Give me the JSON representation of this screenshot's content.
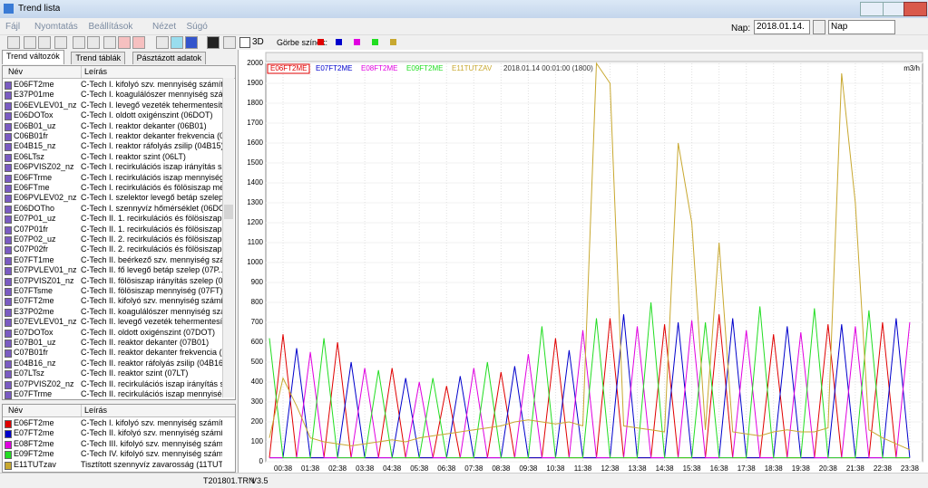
{
  "window": {
    "title": "Trend lista"
  },
  "menu": [
    "Fájl",
    "Nyomtatás",
    "Beállítások",
    "Nézet",
    "Súgó"
  ],
  "toolbar": {
    "curve_colors_label": "Görbe színek:",
    "label_3d": "3D",
    "day_label": "Nap:",
    "date": "2018.01.14.",
    "period": "Nap"
  },
  "tabs": [
    "Trend változók",
    "Trend táblák",
    "Pásztázott adatok"
  ],
  "variables": {
    "columns": [
      "Név",
      "Leírás"
    ],
    "rows": [
      [
        "E06FT2me",
        "C-Tech I. kifolyó szv. mennyiség számít..."
      ],
      [
        "E37P01me",
        "C-Tech I. koagulálószer mennyiség szá..."
      ],
      [
        "E06EVLEV01_nz",
        "C-Tech I. levegő vezeték tehermentesít..."
      ],
      [
        "E06DOTox",
        "C-Tech I. oldott oxigénszint (06DOT)"
      ],
      [
        "E06B01_uz",
        "C-Tech I. reaktor dekanter (06B01)"
      ],
      [
        "C06B01fr",
        "C-Tech I. reaktor dekanter frekvencia (0..."
      ],
      [
        "E04B15_nz",
        "C-Tech I. reaktor ráfolyás zsilip (04B15)"
      ],
      [
        "E06LTsz",
        "C-Tech I. reaktor szint (06LT)"
      ],
      [
        "E06PVISZ02_nz",
        "C-Tech I. recirkulációs iszap irányítás sz..."
      ],
      [
        "E06FTrme",
        "C-Tech I. recirkulációs iszap mennyiség..."
      ],
      [
        "E06FTme",
        "C-Tech I. recirkulációs és fölösiszap me..."
      ],
      [
        "E06PVLEV02_nz",
        "C-Tech I. szelektor levegő betáp szelep..."
      ],
      [
        "E06DOTho",
        "C-Tech I. szennyvíz hőmérséklet (06DO..."
      ],
      [
        "E07P01_uz",
        "C-Tech II. 1. recirkulációs és fölösiszap ..."
      ],
      [
        "C07P01fr",
        "C-Tech II. 1. recirkulációs és fölösiszap ..."
      ],
      [
        "E07P02_uz",
        "C-Tech II. 2. recirkulációs és fölösiszap ..."
      ],
      [
        "C07P02fr",
        "C-Tech II. 2. recirkulációs és fölösiszap ..."
      ],
      [
        "E07FT1me",
        "C-Tech II. beérkező szv. mennyiség szá..."
      ],
      [
        "E07PVLEV01_nz",
        "C-Tech II. fő levegő betáp szelep (07P..."
      ],
      [
        "E07PVISZ01_nz",
        "C-Tech II. fölösiszap irányítás szelep (0..."
      ],
      [
        "E07FTsme",
        "C-Tech II. fölösiszap mennyiség (07FT)"
      ],
      [
        "E07FT2me",
        "C-Tech II. kifolyó szv. mennyiség számí..."
      ],
      [
        "E37P02me",
        "C-Tech II. koagulálószer mennyiség szá..."
      ],
      [
        "E07EVLEV01_nz",
        "C-Tech II. levegő vezeték tehermentesít..."
      ],
      [
        "E07DOTox",
        "C-Tech II. oldott oxigénszint (07DOT)"
      ],
      [
        "E07B01_uz",
        "C-Tech II. reaktor dekanter (07B01)"
      ],
      [
        "C07B01fr",
        "C-Tech II. reaktor dekanter frekvencia (..."
      ],
      [
        "E04B16_nz",
        "C-Tech II. reaktor ráfolyás zsilip (04B16)"
      ],
      [
        "E07LTsz",
        "C-Tech II. reaktor szint (07LT)"
      ],
      [
        "E07PVISZ02_nz",
        "C-Tech II. recirkulációs iszap irányítás s..."
      ],
      [
        "E07FTrme",
        "C-Tech II. recirkulációs iszap mennyiség..."
      ]
    ]
  },
  "selected": {
    "columns": [
      "Név",
      "Leírás"
    ],
    "rows": [
      [
        "E06FT2me",
        "C-Tech I. kifolyó szv. mennyiség számít..."
      ],
      [
        "E07FT2me",
        "C-Tech II. kifolyó szv. mennyiség számí..."
      ],
      [
        "E08FT2me",
        "C-Tech III. kifolyó szv. mennyiség számí..."
      ],
      [
        "E09FT2me",
        "C-Tech IV. kifolyó szv. mennyiség számí..."
      ],
      [
        "E11TUTzav",
        "Tisztított szennyvíz zavarosság (11TUT)"
      ]
    ]
  },
  "chart_data": {
    "type": "line",
    "timestamp": "2018.01.14 00:01:00 (1800)",
    "unit": "m3/h",
    "grid": true,
    "x": [
      "00:08",
      "00:38",
      "01:08",
      "01:38",
      "02:08",
      "02:38",
      "03:08",
      "03:38",
      "04:08",
      "04:38",
      "05:08",
      "05:38",
      "06:08",
      "06:38",
      "07:08",
      "07:38",
      "08:08",
      "08:38",
      "09:08",
      "09:38",
      "10:08",
      "10:38",
      "11:08",
      "11:38",
      "12:08",
      "12:38",
      "13:08",
      "13:38",
      "14:08",
      "14:38",
      "15:08",
      "15:38",
      "16:08",
      "16:38",
      "17:08",
      "17:38",
      "18:08",
      "18:38",
      "19:08",
      "19:38",
      "20:08",
      "20:38",
      "21:08",
      "21:38",
      "22:08",
      "22:38",
      "23:08",
      "23:38"
    ],
    "series": [
      {
        "name": "E06FT2ME",
        "color": "#e00000",
        "values": [
          20,
          640,
          20,
          20,
          20,
          600,
          20,
          20,
          20,
          470,
          20,
          20,
          20,
          380,
          20,
          20,
          20,
          450,
          20,
          20,
          20,
          620,
          20,
          20,
          20,
          720,
          20,
          20,
          20,
          690,
          20,
          20,
          20,
          740,
          20,
          20,
          20,
          640,
          20,
          20,
          20,
          690,
          20,
          20,
          20,
          700,
          20,
          20
        ]
      },
      {
        "name": "E07FT2ME",
        "color": "#0000cc",
        "values": [
          20,
          20,
          570,
          20,
          20,
          20,
          500,
          20,
          20,
          20,
          420,
          20,
          20,
          20,
          430,
          20,
          20,
          20,
          480,
          20,
          20,
          20,
          560,
          20,
          20,
          20,
          740,
          20,
          20,
          20,
          700,
          20,
          20,
          20,
          720,
          20,
          20,
          20,
          680,
          20,
          20,
          20,
          690,
          20,
          20,
          20,
          720,
          20
        ]
      },
      {
        "name": "E08FT2ME",
        "color": "#e000e0",
        "values": [
          20,
          20,
          20,
          550,
          20,
          20,
          20,
          470,
          20,
          20,
          20,
          400,
          20,
          20,
          20,
          470,
          20,
          20,
          20,
          540,
          20,
          20,
          20,
          660,
          20,
          20,
          20,
          680,
          20,
          20,
          20,
          710,
          20,
          20,
          20,
          660,
          20,
          20,
          20,
          650,
          20,
          20,
          20,
          680,
          20,
          20,
          20,
          700
        ]
      },
      {
        "name": "E09FT2ME",
        "color": "#22dd22",
        "values": [
          620,
          20,
          20,
          20,
          620,
          20,
          20,
          20,
          460,
          20,
          20,
          20,
          420,
          20,
          20,
          20,
          500,
          20,
          20,
          20,
          680,
          20,
          20,
          20,
          720,
          20,
          20,
          20,
          800,
          20,
          20,
          20,
          700,
          20,
          20,
          20,
          780,
          20,
          20,
          20,
          770,
          20,
          20,
          20,
          760,
          20,
          20,
          20
        ]
      },
      {
        "name": "E11TUTZAV",
        "color": "#c8a830",
        "values": [
          120,
          420,
          280,
          120,
          100,
          90,
          80,
          90,
          100,
          110,
          100,
          120,
          130,
          140,
          150,
          160,
          170,
          180,
          200,
          210,
          200,
          190,
          200,
          180,
          2000,
          1900,
          180,
          170,
          160,
          150,
          1600,
          1200,
          160,
          1100,
          150,
          140,
          130,
          150,
          160,
          150,
          150,
          170,
          1950,
          1300,
          160,
          120,
          90,
          60
        ]
      }
    ],
    "ylim": [
      0,
      2000
    ],
    "yticks": [
      0,
      100,
      200,
      300,
      400,
      500,
      600,
      700,
      800,
      900,
      1000,
      1100,
      1200,
      1300,
      1400,
      1500,
      1600,
      1700,
      1800,
      1900,
      2000
    ],
    "xticks": [
      "00:38",
      "01:38",
      "02:38",
      "03:38",
      "04:38",
      "05:38",
      "06:38",
      "07:38",
      "08:38",
      "09:38",
      "10:38",
      "11:38",
      "12:38",
      "13:38",
      "14:38",
      "15:38",
      "16:38",
      "17:38",
      "18:38",
      "19:38",
      "20:38",
      "21:38",
      "22:38",
      "23:38"
    ]
  },
  "status": [
    "T201801.TRN",
    "V3.5"
  ]
}
